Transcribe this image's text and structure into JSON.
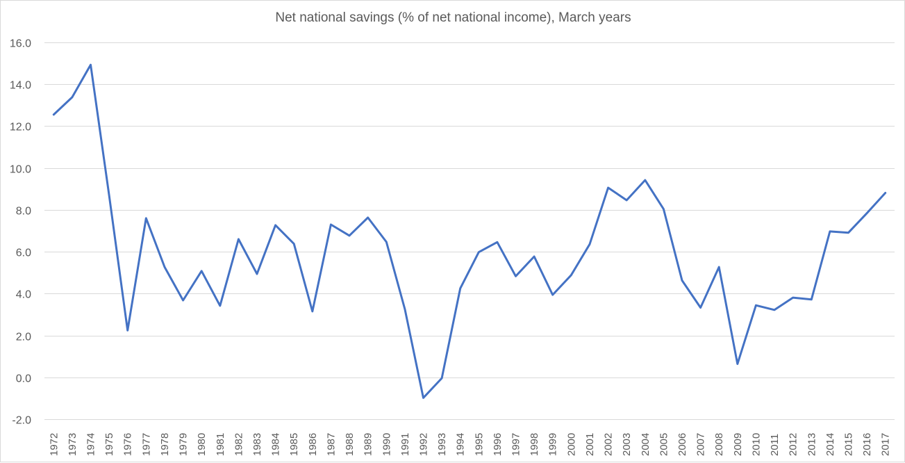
{
  "chart_data": {
    "type": "line",
    "title": "Net national savings (% of net national income), March years",
    "xlabel": "",
    "ylabel": "",
    "ylim": [
      -2.0,
      16.0
    ],
    "yticks": [
      "16.0",
      "14.0",
      "12.0",
      "10.0",
      "8.0",
      "6.0",
      "4.0",
      "2.0",
      "0.0",
      "-2.0"
    ],
    "ytick_values": [
      16,
      14,
      12,
      10,
      8,
      6,
      4,
      2,
      0,
      -2
    ],
    "grid": true,
    "legend": null,
    "line_color": "#4472c4",
    "categories": [
      "1972",
      "1973",
      "1974",
      "1975",
      "1976",
      "1977",
      "1978",
      "1979",
      "1980",
      "1981",
      "1982",
      "1983",
      "1984",
      "1985",
      "1986",
      "1987",
      "1988",
      "1989",
      "1990",
      "1991",
      "1992",
      "1993",
      "1994",
      "1995",
      "1996",
      "1997",
      "1998",
      "1999",
      "2000",
      "2001",
      "2002",
      "2003",
      "2004",
      "2005",
      "2006",
      "2007",
      "2008",
      "2009",
      "2010",
      "2011",
      "2012",
      "2013",
      "2014",
      "2015",
      "2016",
      "2017"
    ],
    "series": [
      {
        "name": "Net national savings (% of net national income)",
        "values": [
          12.55,
          13.38,
          14.93,
          8.7,
          2.24,
          7.6,
          5.27,
          3.68,
          5.08,
          3.42,
          6.6,
          4.94,
          7.27,
          6.38,
          3.15,
          7.3,
          6.77,
          7.63,
          6.47,
          3.26,
          -0.98,
          -0.04,
          4.25,
          5.98,
          6.46,
          4.83,
          5.77,
          3.94,
          4.88,
          6.36,
          9.06,
          8.46,
          9.42,
          8.04,
          4.63,
          3.33,
          5.27,
          0.64,
          3.44,
          3.22,
          3.81,
          3.72,
          6.97,
          6.91,
          7.84,
          8.81
        ]
      }
    ]
  }
}
